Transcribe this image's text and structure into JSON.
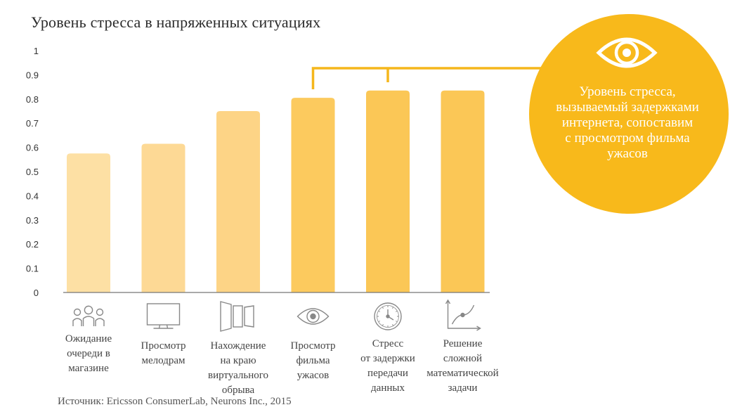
{
  "chart_data": {
    "type": "bar",
    "title": "Уровень стресса в напряженных ситуациях",
    "xlabel": "",
    "ylabel": "",
    "ylim": [
      0,
      1
    ],
    "yticks": [
      "0",
      "0.1",
      "0.2",
      "0.3",
      "0.4",
      "0.5",
      "0.6",
      "0.7",
      "0.8",
      "0.9",
      "1"
    ],
    "grid": false,
    "categories": [
      "Ожидание\nочереди в\nмагазине",
      "Просмотр\nмелодрам",
      "Нахождение\nна краю\nвиртуального\nобрыва",
      "Просмотр\nфильма\nужасов",
      "Стресс\nот задержки\nпередачи\nданных",
      "Решение\nсложной\nматематической\nзадачи"
    ],
    "values": [
      0.575,
      0.615,
      0.75,
      0.805,
      0.835,
      0.835
    ],
    "bar_colors": [
      "#fde0a4",
      "#fdd995",
      "#fdd486",
      "#fcca5e",
      "#fbc756",
      "#fbc756"
    ],
    "category_icons": [
      "people-queue-icon",
      "monitor-icon",
      "cliff-panels-icon",
      "eye-icon",
      "clock-icon",
      "graph-icon"
    ]
  },
  "callout": {
    "text": "Уровень стресса,\nвызываемый задержками\nинтернета, сопоставим\nс просмотром фильма\nужасов",
    "icon": "eye-icon",
    "circle_color": "#f8b91b",
    "bracket_color": "#f5b71c"
  },
  "source": "Источник: Ericsson ConsumerLab, Neurons Inc., 2015",
  "colors": {
    "axis": "#777777",
    "tick_text": "#333333",
    "category_text": "#444444",
    "icon_stroke": "#888888"
  }
}
